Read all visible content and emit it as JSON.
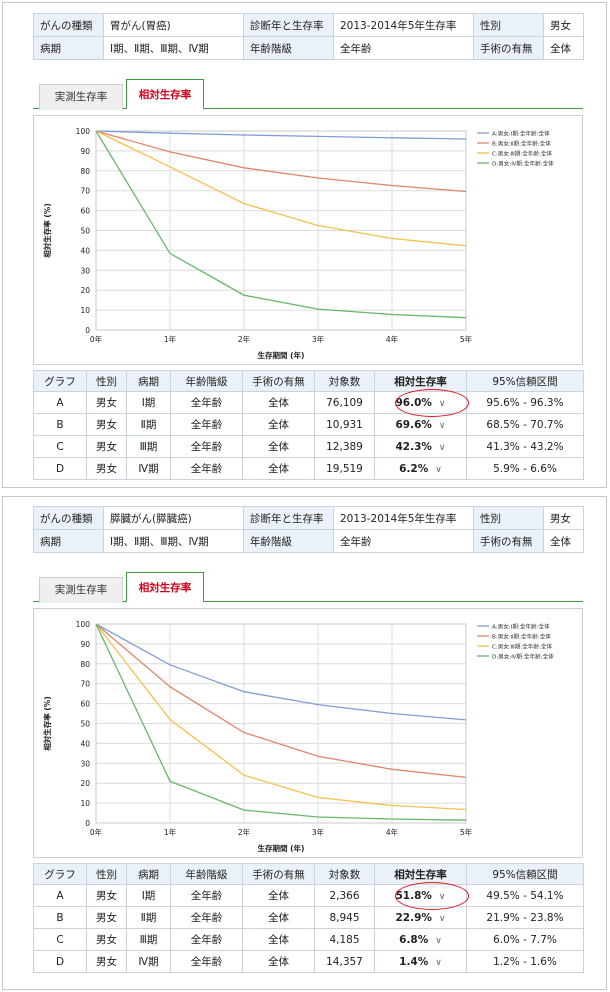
{
  "colors": {
    "A": "#7f9fd8",
    "B": "#e0856b",
    "C": "#f6c04e",
    "D": "#66b76a",
    "tab_active": "#d0021b",
    "highlight_ring": "#e0141e"
  },
  "sections": [
    {
      "info": {
        "cancer_type_label": "がんの種類",
        "cancer_type": "胃がん(胃癌)",
        "diag_year_label": "診断年と生存率",
        "diag_year": "2013-2014年5年生存率",
        "sex_label": "性別",
        "sex": "男女",
        "stage_label": "病期",
        "stage": "Ⅰ期、Ⅱ期、Ⅲ期、Ⅳ期",
        "age_label": "年齢階級",
        "age": "全年齢",
        "surgery_label": "手術の有無",
        "surgery": "全体"
      },
      "tabs": {
        "measured": "実測生存率",
        "relative": "相対生存率"
      },
      "chart_data": {
        "type": "line",
        "xlabel": "生存期間 (年)",
        "ylabel": "相対生存率 (%)",
        "x": [
          0,
          1,
          2,
          3,
          4,
          5
        ],
        "x_ticks": [
          "0年",
          "1年",
          "2年",
          "3年",
          "4年",
          "5年"
        ],
        "y_ticks": [
          "0",
          "10",
          "20",
          "30",
          "40",
          "50",
          "60",
          "70",
          "80",
          "90",
          "100"
        ],
        "ylim": [
          0,
          100
        ],
        "grid": true,
        "legend": "top-right",
        "series": [
          {
            "name": "A:男女:Ⅰ期:全年齢:全体",
            "key": "A",
            "values": [
              100,
              98.9,
              98.0,
              97.3,
              96.6,
              96.0
            ]
          },
          {
            "name": "B:男女:Ⅱ期:全年齢:全体",
            "key": "B",
            "values": [
              100,
              89.5,
              81.5,
              76.4,
              72.6,
              69.6
            ]
          },
          {
            "name": "C:男女:Ⅲ期:全年齢:全体",
            "key": "C",
            "values": [
              100,
              82.0,
              63.5,
              52.5,
              46.0,
              42.3
            ]
          },
          {
            "name": "D:男女:Ⅳ期:全年齢:全体",
            "key": "D",
            "values": [
              100,
              38.5,
              17.5,
              10.5,
              7.8,
              6.2
            ]
          }
        ]
      },
      "table": {
        "headers": [
          "グラフ",
          "性別",
          "病期",
          "年齢階級",
          "手術の有無",
          "対象数",
          "相対生存率",
          "95%信頼区間"
        ],
        "rows": [
          {
            "graph": "A",
            "sex": "男女",
            "stage": "Ⅰ期",
            "age": "全年齢",
            "surgery": "全体",
            "count": "76,109",
            "rate": "96.0%",
            "ci": "95.6% - 96.3%"
          },
          {
            "graph": "B",
            "sex": "男女",
            "stage": "Ⅱ期",
            "age": "全年齢",
            "surgery": "全体",
            "count": "10,931",
            "rate": "69.6%",
            "ci": "68.5% - 70.7%"
          },
          {
            "graph": "C",
            "sex": "男女",
            "stage": "Ⅲ期",
            "age": "全年齢",
            "surgery": "全体",
            "count": "12,389",
            "rate": "42.3%",
            "ci": "41.3% - 43.2%"
          },
          {
            "graph": "D",
            "sex": "男女",
            "stage": "Ⅳ期",
            "age": "全年齢",
            "surgery": "全体",
            "count": "19,519",
            "rate": "6.2%",
            "ci": "5.9% - 6.6%"
          }
        ]
      }
    },
    {
      "info": {
        "cancer_type_label": "がんの種類",
        "cancer_type": "膵臓がん(膵臓癌)",
        "diag_year_label": "診断年と生存率",
        "diag_year": "2013-2014年5年生存率",
        "sex_label": "性別",
        "sex": "男女",
        "stage_label": "病期",
        "stage": "Ⅰ期、Ⅱ期、Ⅲ期、Ⅳ期",
        "age_label": "年齢階級",
        "age": "全年齢",
        "surgery_label": "手術の有無",
        "surgery": "全体"
      },
      "tabs": {
        "measured": "実測生存率",
        "relative": "相対生存率"
      },
      "chart_data": {
        "type": "line",
        "xlabel": "生存期間 (年)",
        "ylabel": "相対生存率 (%)",
        "x": [
          0,
          1,
          2,
          3,
          4,
          5
        ],
        "x_ticks": [
          "0年",
          "1年",
          "2年",
          "3年",
          "4年",
          "5年"
        ],
        "y_ticks": [
          "0",
          "10",
          "20",
          "30",
          "40",
          "50",
          "60",
          "70",
          "80",
          "90",
          "100"
        ],
        "ylim": [
          0,
          100
        ],
        "grid": true,
        "legend": "top-right",
        "series": [
          {
            "name": "A:男女:Ⅰ期:全年齢:全体",
            "key": "A",
            "values": [
              100,
              79.5,
              66.0,
              59.5,
              55.0,
              51.8
            ]
          },
          {
            "name": "B:男女:Ⅱ期:全年齢:全体",
            "key": "B",
            "values": [
              100,
              68.5,
              45.5,
              33.5,
              27.0,
              22.9
            ]
          },
          {
            "name": "C:男女:Ⅲ期:全年齢:全体",
            "key": "C",
            "values": [
              100,
              52.0,
              24.0,
              12.8,
              8.8,
              6.8
            ]
          },
          {
            "name": "D:男女:Ⅳ期:全年齢:全体",
            "key": "D",
            "values": [
              100,
              21.0,
              6.5,
              3.0,
              2.0,
              1.4
            ]
          }
        ]
      },
      "table": {
        "headers": [
          "グラフ",
          "性別",
          "病期",
          "年齢階級",
          "手術の有無",
          "対象数",
          "相対生存率",
          "95%信頼区間"
        ],
        "rows": [
          {
            "graph": "A",
            "sex": "男女",
            "stage": "Ⅰ期",
            "age": "全年齢",
            "surgery": "全体",
            "count": "2,366",
            "rate": "51.8%",
            "ci": "49.5% - 54.1%"
          },
          {
            "graph": "B",
            "sex": "男女",
            "stage": "Ⅱ期",
            "age": "全年齢",
            "surgery": "全体",
            "count": "8,945",
            "rate": "22.9%",
            "ci": "21.9% - 23.8%"
          },
          {
            "graph": "C",
            "sex": "男女",
            "stage": "Ⅲ期",
            "age": "全年齢",
            "surgery": "全体",
            "count": "4,185",
            "rate": "6.8%",
            "ci": "6.0% - 7.7%"
          },
          {
            "graph": "D",
            "sex": "男女",
            "stage": "Ⅳ期",
            "age": "全年齢",
            "surgery": "全体",
            "count": "14,357",
            "rate": "1.4%",
            "ci": "1.2% - 1.6%"
          }
        ]
      }
    }
  ]
}
